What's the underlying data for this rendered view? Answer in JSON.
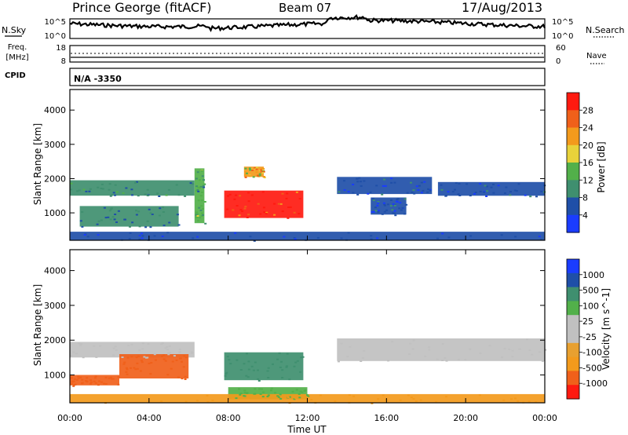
{
  "header": {
    "title": "Prince George (fitACF)",
    "beam": "Beam 07",
    "date": "17/Aug/2013"
  },
  "top_panels": {
    "nsky_label": "N.Sky",
    "nsky_ticks": [
      "10^5",
      "10^0"
    ],
    "nsearch_label": "N.Search",
    "nsearch_ticks": [
      "10^5",
      "10^0"
    ],
    "freq_label_1": "Freq.",
    "freq_label_2": "[MHz]",
    "freq_ticks": [
      "18",
      "8"
    ],
    "nave_label": "Nave",
    "nave_ticks": [
      "60",
      "0"
    ],
    "cpid_label": "CPID",
    "cpid_value": "N/A  -3350"
  },
  "x_axis": {
    "label": "Time UT",
    "ticks": [
      "00:00",
      "04:00",
      "08:00",
      "12:00",
      "16:00",
      "20:00",
      "00:00"
    ]
  },
  "colors": {
    "power": [
      "#1a3cff",
      "#1f4fa8",
      "#3f8f6f",
      "#52b04a",
      "#e8d23a",
      "#f39a1c",
      "#f0601a",
      "#ff1a10"
    ],
    "velocity": [
      "#ff1a10",
      "#f0601a",
      "#f39a1c",
      "#e8a030",
      "#c0c0c0",
      "#c0c0c0",
      "#52b04a",
      "#3f8f6f",
      "#1f4fa8",
      "#1a3cff"
    ],
    "ground_scatter": "#c0c0c0"
  },
  "chart_data": [
    {
      "type": "heatmap",
      "panel": "power",
      "ylabel": "Slant Range [km]",
      "yticks": [
        "1000",
        "2000",
        "3000",
        "4000"
      ],
      "ylim": [
        200,
        4600
      ],
      "xlim_hours": [
        0,
        24
      ],
      "colorbar_label": "Power [dB]",
      "colorbar_ticks": [
        "4",
        "8",
        "12",
        "16",
        "20",
        "24",
        "28"
      ],
      "colorbar_range": [
        0,
        32
      ],
      "regions": [
        {
          "t0": 0.0,
          "t1": 6.3,
          "r0": 1500,
          "r1": 1950,
          "value": 10
        },
        {
          "t0": 0.5,
          "t1": 5.5,
          "r0": 600,
          "r1": 1200,
          "value": 8
        },
        {
          "t0": 6.3,
          "t1": 6.8,
          "r0": 700,
          "r1": 2300,
          "value": 12
        },
        {
          "t0": 7.8,
          "t1": 11.8,
          "r0": 850,
          "r1": 1650,
          "value": 30
        },
        {
          "t0": 8.8,
          "t1": 9.8,
          "r0": 2050,
          "r1": 2350,
          "value": 20
        },
        {
          "t0": 13.5,
          "t1": 18.3,
          "r0": 1550,
          "r1": 2050,
          "value": 6
        },
        {
          "t0": 15.2,
          "t1": 17.0,
          "r0": 950,
          "r1": 1450,
          "value": 6
        },
        {
          "t0": 18.6,
          "t1": 24.0,
          "r0": 1500,
          "r1": 1900,
          "value": 6
        },
        {
          "t0": 0.0,
          "t1": 24.0,
          "r0": 200,
          "r1": 450,
          "value": 5
        }
      ]
    },
    {
      "type": "heatmap",
      "panel": "velocity",
      "ylabel": "Slant Range [km]",
      "yticks": [
        "1000",
        "2000",
        "3000",
        "4000"
      ],
      "ylim": [
        200,
        4600
      ],
      "xlim_hours": [
        0,
        24
      ],
      "colorbar_label": "Velocity [m s^-1]",
      "colorbar_ticks": [
        "1000",
        "500",
        "100",
        "25",
        "-25",
        "-100",
        "-500",
        "-1000"
      ],
      "regions": [
        {
          "t0": 0.0,
          "t1": 6.3,
          "r0": 1500,
          "r1": 1950,
          "value": 0
        },
        {
          "t0": 2.5,
          "t1": 6.0,
          "r0": 900,
          "r1": 1600,
          "value": -400
        },
        {
          "t0": 0.0,
          "t1": 2.5,
          "r0": 700,
          "r1": 1000,
          "value": -300
        },
        {
          "t0": 7.8,
          "t1": 11.8,
          "r0": 850,
          "r1": 1650,
          "value": 150
        },
        {
          "t0": 13.5,
          "t1": 24.0,
          "r0": 1400,
          "r1": 2050,
          "value": 0
        },
        {
          "t0": 8.0,
          "t1": 12.0,
          "r0": 300,
          "r1": 650,
          "value": 60
        },
        {
          "t0": 0.0,
          "t1": 24.0,
          "r0": 200,
          "r1": 450,
          "value": -60
        }
      ]
    }
  ]
}
